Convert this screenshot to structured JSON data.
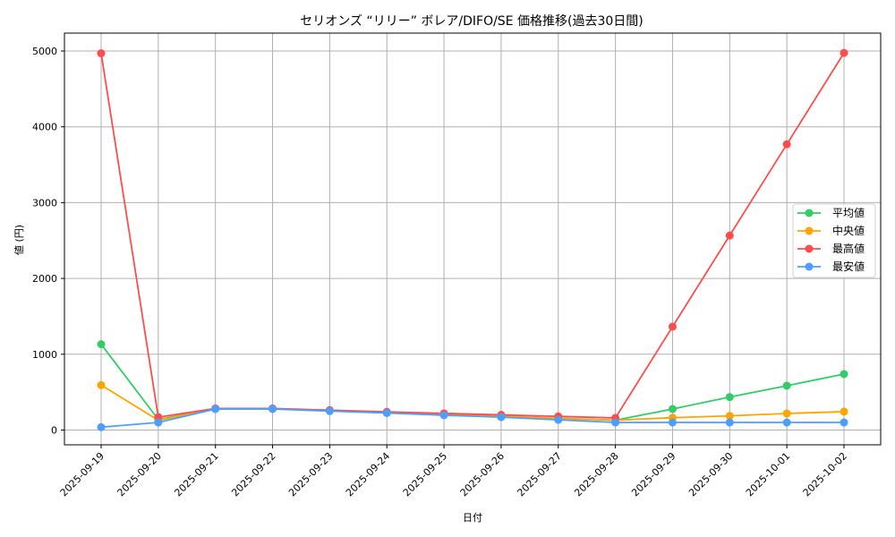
{
  "chart_data": {
    "type": "line",
    "title": "セリオンズ “リリー” ボレア/DIFO/SE 価格推移(過去30日間)",
    "xlabel": "日付",
    "ylabel": "値 (円)",
    "ylim": [
      -200,
      5220
    ],
    "yticks": [
      0,
      1000,
      2000,
      3000,
      4000,
      5000
    ],
    "grid": true,
    "legend_position": "center right",
    "categories": [
      "2025-09-19",
      "2025-09-20",
      "2025-09-21",
      "2025-09-22",
      "2025-09-23",
      "2025-09-24",
      "2025-09-25",
      "2025-09-26",
      "2025-09-27",
      "2025-09-28",
      "2025-09-29",
      "2025-09-30",
      "2025-10-01",
      "2025-10-02"
    ],
    "series": [
      {
        "name": "平均値",
        "color": "#33cc66",
        "values": [
          1132,
          140,
          280,
          280,
          255,
          230,
          205,
          180,
          155,
          130,
          278,
          435,
          585,
          738
        ]
      },
      {
        "name": "中央値",
        "color": "#ffa500",
        "values": [
          593,
          130,
          280,
          280,
          255,
          230,
          205,
          180,
          155,
          130,
          163,
          187,
          218,
          243
        ]
      },
      {
        "name": "最高値",
        "color": "#ff4d4d",
        "values": [
          4970,
          170,
          285,
          285,
          262,
          240,
          220,
          200,
          180,
          160,
          1364,
          2566,
          3770,
          4975
        ]
      },
      {
        "name": "最安値",
        "color": "#4d9fff",
        "values": [
          38,
          100,
          278,
          278,
          250,
          225,
          195,
          170,
          135,
          100,
          100,
          100,
          100,
          100
        ]
      }
    ]
  }
}
